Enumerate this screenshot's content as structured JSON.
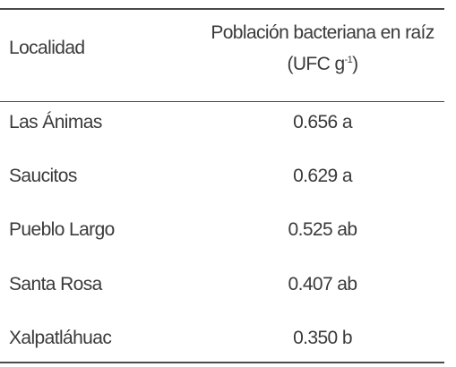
{
  "table": {
    "header": {
      "col1": "Localidad",
      "col2_line1": "Población bacteriana en raíz",
      "col2_line2_prefix": "(UFC g",
      "col2_line2_sup": "-1",
      "col2_line2_suffix": ")"
    },
    "rows": [
      {
        "locality": "Las Ánimas",
        "value": "0.656 a"
      },
      {
        "locality": "Saucitos",
        "value": "0.629 a"
      },
      {
        "locality": "Pueblo Largo",
        "value": "0.525 ab"
      },
      {
        "locality": "Santa Rosa",
        "value": "0.407 ab"
      },
      {
        "locality": "Xalpatláhuac",
        "value": "0.350 b"
      }
    ]
  }
}
